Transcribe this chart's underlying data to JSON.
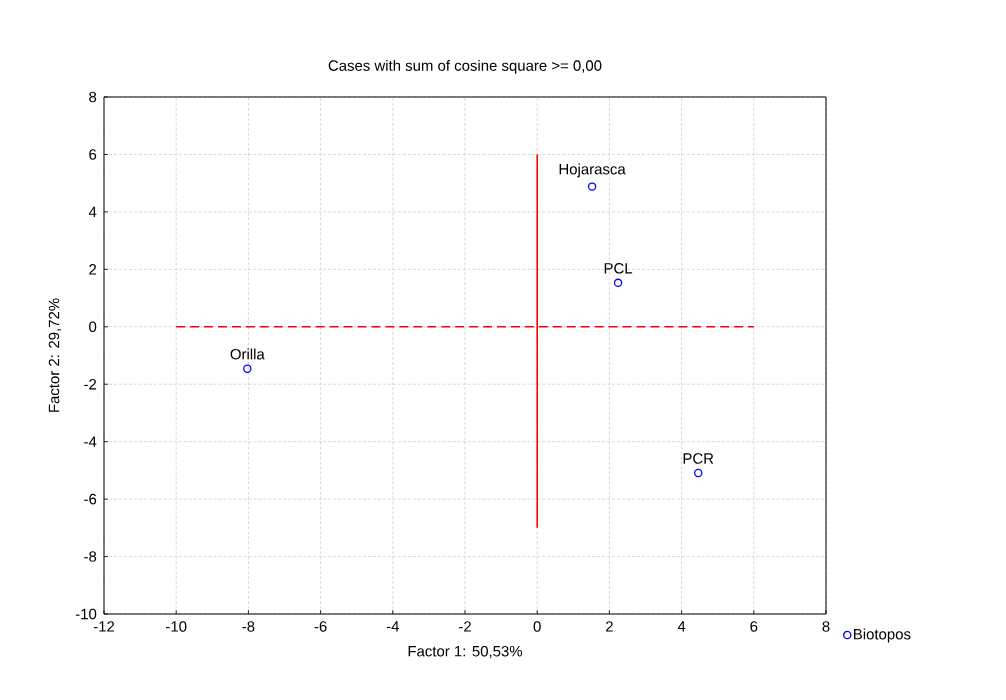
{
  "chart_data": {
    "type": "scatter",
    "title": "Cases with sum of cosine square >=  0,00",
    "xlabel": "Factor 1: 50,53%",
    "ylabel": "Factor 2: 29,72%",
    "xlim": [
      -12,
      8
    ],
    "xticks": [
      -12,
      -10,
      -8,
      -6,
      -4,
      -2,
      0,
      2,
      4,
      6,
      8
    ],
    "ylim": [
      -10,
      8
    ],
    "yticks": [
      -10,
      -8,
      -6,
      -4,
      -2,
      0,
      2,
      4,
      6,
      8
    ],
    "grid": true,
    "legend": "bottom right",
    "marker": "circle",
    "series": [
      {
        "name": "Biotopos",
        "color": "#0000ff",
        "x": [
          1.52,
          2.24,
          -8.03,
          4.46
        ],
        "values": [
          4.88,
          1.53,
          -1.46,
          -5.09
        ]
      },
      {
        "type": "line",
        "color": "#ff0000",
        "x": [
          -10,
          6
        ],
        "values": [
          0,
          0
        ],
        "line_style": "dashed",
        "marker": "none"
      },
      {
        "type": "line",
        "color": "#ff0000",
        "x": [
          0,
          0
        ],
        "values": [
          -7,
          6
        ],
        "line_style": "solid",
        "marker": "none"
      }
    ],
    "annotations": [
      {
        "text": "Hojarasca",
        "x": 1.52,
        "y": 4.88
      },
      {
        "text": "PCL",
        "x": 2.24,
        "y": 1.53
      },
      {
        "text": "Orilla",
        "x": -8.03,
        "y": -1.46
      },
      {
        "text": "PCR",
        "x": 4.46,
        "y": -5.09
      }
    ]
  }
}
